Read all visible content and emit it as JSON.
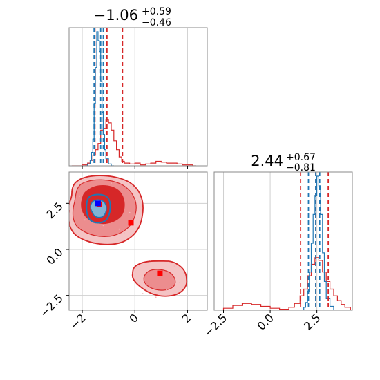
{
  "chart_data": {
    "type": "corner",
    "parameters": [
      {
        "title_main": "−1.06",
        "title_plus": "+0.59",
        "title_minus": "−0.46",
        "range": [
          -2.5,
          2.75
        ],
        "ticks": [
          -2,
          0,
          2
        ],
        "tick_labels": [
          "−2",
          "0",
          "2"
        ],
        "quantile_lines_red": [
          -1.52,
          -1.06,
          -0.47
        ],
        "quantile_lines_blue": [
          -1.55,
          -1.3,
          -1.2
        ]
      },
      {
        "title_main": "2.44",
        "title_plus": "+0.67",
        "title_minus": "−0.81",
        "range": [
          -3.0,
          4.4
        ],
        "ticks": [
          -2.5,
          0.0,
          2.5
        ],
        "tick_labels": [
          "−2.5",
          "0.0",
          "2.5"
        ],
        "quantile_lines_red": [
          1.63,
          2.44,
          3.11
        ],
        "quantile_lines_blue": [
          2.05,
          2.44,
          2.65
        ]
      }
    ],
    "series": [
      {
        "color": "#d62728",
        "hist1": {
          "x": [
            -2.4,
            -2.2,
            -2.0,
            -1.8,
            -1.7,
            -1.6,
            -1.5,
            -1.4,
            -1.3,
            -1.2,
            -1.1,
            -1.0,
            -0.9,
            -0.8,
            -0.7,
            -0.6,
            -0.5,
            -0.4,
            -0.2,
            0.0,
            0.2,
            0.4,
            0.6,
            0.8,
            1.0,
            1.2,
            1.4,
            1.6,
            1.8,
            2.0,
            2.2
          ],
          "y": [
            0,
            0,
            1,
            3,
            6,
            12,
            18,
            25,
            40,
            42,
            52,
            48,
            40,
            28,
            18,
            10,
            5,
            3,
            2,
            3,
            1,
            2,
            3,
            5,
            4,
            3,
            3,
            2,
            1,
            1,
            0
          ]
        },
        "hist2": {
          "x": [
            -3.0,
            -2.5,
            -2.0,
            -1.5,
            -1.0,
            -0.5,
            0.0,
            0.5,
            1.0,
            1.3,
            1.6,
            1.8,
            2.0,
            2.2,
            2.4,
            2.6,
            2.8,
            3.0,
            3.2,
            3.4,
            3.6,
            3.8,
            4.0,
            4.3
          ],
          "y": [
            0,
            2,
            5,
            7,
            6,
            4,
            2,
            1,
            3,
            7,
            15,
            22,
            36,
            48,
            55,
            52,
            40,
            30,
            22,
            15,
            10,
            6,
            3,
            0
          ]
        },
        "peaks": [
          [
            -1.35,
            2.45
          ],
          [
            -0.15,
            1.45
          ],
          [
            0.95,
            -1.3
          ]
        ]
      },
      {
        "color": "#1f77b4",
        "hist1": {
          "x": [
            -1.9,
            -1.8,
            -1.7,
            -1.65,
            -1.6,
            -1.55,
            -1.5,
            -1.45,
            -1.4,
            -1.35,
            -1.3,
            -1.25,
            -1.2,
            -1.15,
            -1.1,
            -1.0,
            -0.9
          ],
          "y": [
            0,
            2,
            6,
            15,
            30,
            70,
            110,
            150,
            140,
            128,
            95,
            60,
            35,
            18,
            8,
            2,
            0
          ]
        },
        "hist2": {
          "x": [
            1.6,
            1.8,
            1.9,
            2.0,
            2.1,
            2.2,
            2.3,
            2.4,
            2.5,
            2.6,
            2.7,
            2.8,
            2.9,
            3.0,
            3.2,
            3.4
          ],
          "y": [
            0,
            3,
            8,
            20,
            40,
            70,
            100,
            120,
            140,
            130,
            100,
            60,
            30,
            12,
            4,
            0
          ]
        },
        "peaks": [
          [
            -1.4,
            2.5
          ]
        ]
      }
    ]
  }
}
